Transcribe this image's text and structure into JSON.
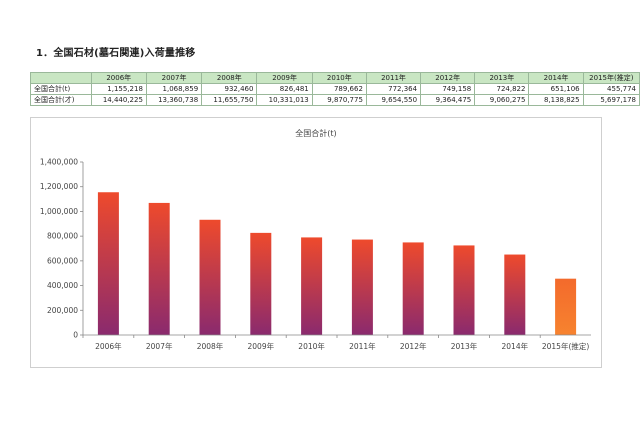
{
  "page": {
    "heading": "1．全国石材(墓石関連)入荷量推移"
  },
  "table": {
    "headers": [
      "2006年",
      "2007年",
      "2008年",
      "2009年",
      "2010年",
      "2011年",
      "2012年",
      "2013年",
      "2014年",
      "2015年(推定)"
    ],
    "rows": [
      {
        "label": "全国合計(t)",
        "values": [
          "1,155,218",
          "1,068,859",
          "932,460",
          "826,481",
          "789,662",
          "772,364",
          "749,158",
          "724,822",
          "651,106",
          "455,774"
        ]
      },
      {
        "label": "全国合計(才)",
        "values": [
          "14,440,225",
          "13,360,738",
          "11,655,750",
          "10,331,013",
          "9,870,775",
          "9,654,550",
          "9,364,475",
          "9,060,275",
          "8,138,825",
          "5,697,178"
        ]
      }
    ]
  },
  "chart_data": {
    "type": "bar",
    "title": "全国合計(t)",
    "categories": [
      "2006年",
      "2007年",
      "2008年",
      "2009年",
      "2010年",
      "2011年",
      "2012年",
      "2013年",
      "2014年",
      "2015年(推定)"
    ],
    "values": [
      1155218,
      1068859,
      932460,
      826481,
      789662,
      772364,
      749158,
      724822,
      651106,
      455774
    ],
    "ylim": [
      0,
      1400000
    ],
    "yticks": [
      0,
      200000,
      400000,
      600000,
      800000,
      1000000,
      1200000,
      1400000
    ],
    "ytick_labels": [
      "0",
      "200,000",
      "400,000",
      "600,000",
      "800,000",
      "1,000,000",
      "1,200,000",
      "1,400,000"
    ],
    "grid": false,
    "legend": "none",
    "colors": {
      "bar_top": "#ee4a2c",
      "bar_bottom": "#8a2a6e",
      "highlight_top": "#f36a2c",
      "highlight_bottom": "#f7832f",
      "axis": "#888888"
    }
  }
}
